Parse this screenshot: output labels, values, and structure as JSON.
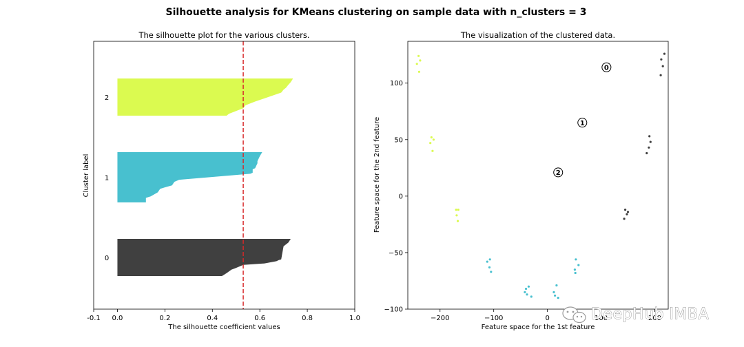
{
  "suptitle": "Silhouette analysis for KMeans clustering on sample data with n_clusters = 3",
  "watermark": "DeepHub IMBA",
  "chart_data": [
    {
      "type": "area",
      "title": "The silhouette plot for the various clusters.",
      "xlabel": "The silhouette coefficient values",
      "ylabel": "Cluster label",
      "xlim": [
        -0.1,
        1.0
      ],
      "xticks": [
        "-0.1",
        "0.0",
        "0.2",
        "0.4",
        "0.6",
        "0.8",
        "1.0"
      ],
      "average_score": 0.53,
      "average_line_color": "#d62728",
      "clusters": [
        {
          "label": "0",
          "color": "#404040",
          "profile": [
            [
              0.0,
              0.73
            ],
            [
              0.1,
              0.72
            ],
            [
              0.2,
              0.7
            ],
            [
              0.55,
              0.69
            ],
            [
              0.57,
              0.68
            ],
            [
              0.6,
              0.67
            ],
            [
              0.66,
              0.62
            ],
            [
              0.7,
              0.53
            ],
            [
              0.78,
              0.5
            ],
            [
              0.83,
              0.48
            ],
            [
              0.92,
              0.46
            ],
            [
              1.0,
              0.44
            ]
          ]
        },
        {
          "label": "1",
          "color": "#48c0cf",
          "profile": [
            [
              0.0,
              0.61
            ],
            [
              0.08,
              0.6
            ],
            [
              0.18,
              0.59
            ],
            [
              0.22,
              0.59
            ],
            [
              0.32,
              0.58
            ],
            [
              0.34,
              0.57
            ],
            [
              0.37,
              0.57
            ],
            [
              0.41,
              0.57
            ],
            [
              0.43,
              0.56
            ],
            [
              0.55,
              0.26
            ],
            [
              0.59,
              0.24
            ],
            [
              0.66,
              0.23
            ],
            [
              0.7,
              0.2
            ],
            [
              0.73,
              0.18
            ],
            [
              0.8,
              0.17
            ],
            [
              0.88,
              0.14
            ],
            [
              0.91,
              0.12
            ],
            [
              1.0,
              0.12
            ]
          ]
        },
        {
          "label": "2",
          "color": "#dbfa50",
          "profile": [
            [
              0.0,
              0.74
            ],
            [
              0.1,
              0.73
            ],
            [
              0.17,
              0.72
            ],
            [
              0.25,
              0.71
            ],
            [
              0.3,
              0.7
            ],
            [
              0.38,
              0.69
            ],
            [
              0.62,
              0.58
            ],
            [
              0.72,
              0.54
            ],
            [
              0.8,
              0.53
            ],
            [
              0.85,
              0.51
            ],
            [
              0.95,
              0.47
            ],
            [
              1.0,
              0.46
            ]
          ]
        }
      ]
    },
    {
      "type": "scatter",
      "title": "The visualization of the clustered data.",
      "xlabel": "Feature space for the 1st feature",
      "ylabel": "Feature space for the 2nd feature",
      "xlim": [
        -260,
        225
      ],
      "ylim": [
        -100,
        137
      ],
      "xticks": [
        -200,
        -100,
        0,
        100,
        200
      ],
      "yticks": [
        -100,
        -50,
        0,
        50,
        100
      ],
      "series": [
        {
          "cluster": "0",
          "color": "#404040",
          "points": [
            [
              218,
              126
            ],
            [
              212,
              121
            ],
            [
              215,
              115
            ],
            [
              211,
              107
            ],
            [
              190,
              53
            ],
            [
              192,
              48
            ],
            [
              189,
              43
            ],
            [
              185,
              38
            ],
            [
              145,
              -12
            ],
            [
              150,
              -14
            ],
            [
              148,
              -16
            ],
            [
              143,
              -20
            ]
          ]
        },
        {
          "cluster": "1",
          "color": "#48c0cf",
          "points": [
            [
              -112,
              -58
            ],
            [
              -107,
              -56
            ],
            [
              -108,
              -63
            ],
            [
              -105,
              -67
            ],
            [
              -40,
              -82
            ],
            [
              -35,
              -80
            ],
            [
              -42,
              -85
            ],
            [
              -38,
              -87
            ],
            [
              -30,
              -89
            ],
            [
              17,
              -79
            ],
            [
              12,
              -85
            ],
            [
              14,
              -88
            ],
            [
              20,
              -90
            ],
            [
              53,
              -56
            ],
            [
              58,
              -61
            ],
            [
              51,
              -65
            ],
            [
              52,
              -68
            ]
          ]
        },
        {
          "cluster": "2",
          "color": "#dbfa50",
          "points": [
            [
              -240,
              124
            ],
            [
              -237,
              120
            ],
            [
              -243,
              117
            ],
            [
              -239,
              110
            ],
            [
              -216,
              52
            ],
            [
              -212,
              50
            ],
            [
              -218,
              47
            ],
            [
              -214,
              40
            ],
            [
              -170,
              -12
            ],
            [
              -166,
              -12
            ],
            [
              -169,
              -17
            ],
            [
              -167,
              -22
            ]
          ]
        }
      ],
      "centers": [
        {
          "label": "0",
          "x": 110,
          "y": 114
        },
        {
          "label": "1",
          "x": 65,
          "y": 65
        },
        {
          "label": "2",
          "x": 20,
          "y": 21
        }
      ]
    }
  ]
}
